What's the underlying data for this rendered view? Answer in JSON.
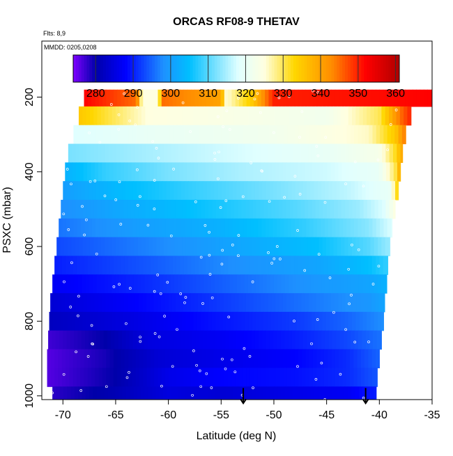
{
  "chart_data": {
    "type": "heatmap",
    "title": "ORCAS RF08-9 THETAV",
    "annotations": {
      "flights": "Flts: 8,9",
      "dates": "MMDD: 0205,0208"
    },
    "xlabel": "Latitude (deg N)",
    "ylabel": "PSXC (mbar)",
    "xlim": [
      -72,
      -35
    ],
    "ylim": [
      1010,
      50
    ],
    "y_reversed": true,
    "x_ticks": [
      -70,
      -65,
      -60,
      -55,
      -50,
      -45,
      -40,
      -35
    ],
    "x_tick_labels": [
      "-70",
      "-65",
      "-60",
      "-55",
      "-50",
      "-45",
      "-40",
      "-35"
    ],
    "y_ticks": [
      200,
      400,
      600,
      800,
      1000
    ],
    "y_tick_labels": [
      "200",
      "400",
      "600",
      "800",
      "1000"
    ],
    "colorbar": {
      "min": 274,
      "max": 361,
      "ticks": [
        280,
        290,
        300,
        310,
        320,
        330,
        340,
        350,
        360
      ],
      "tick_labels": [
        "280",
        "290",
        "300",
        "310",
        "320",
        "330",
        "340",
        "350",
        "360"
      ],
      "colors": [
        "#7f00ff",
        "#0000aa",
        "#0000ff",
        "#1e90ff",
        "#00bfff",
        "#e0ffff",
        "#ffffe0",
        "#ffd700",
        "#ff8c00",
        "#ff0000",
        "#b00000"
      ],
      "color_stops": [
        274,
        280,
        288,
        298,
        305,
        318,
        325,
        333,
        343,
        352,
        361
      ]
    },
    "layers": [
      {
        "p_top": 180,
        "p_bot": 225,
        "lat_min": -68,
        "lat_max": -35,
        "values": [
          [
            -68,
            352
          ],
          [
            -63,
            345
          ],
          [
            -62.5,
            325
          ],
          [
            -61,
            325
          ],
          [
            -60.5,
            345
          ],
          [
            -55,
            340
          ],
          [
            -54.5,
            325
          ],
          [
            -52,
            335
          ],
          [
            -50,
            350
          ],
          [
            -35,
            352
          ]
        ]
      },
      {
        "p_top": 225,
        "p_bot": 275,
        "lat_min": -68.5,
        "lat_max": -37,
        "values": [
          [
            -68.5,
            335
          ],
          [
            -62,
            325
          ],
          [
            -45,
            322
          ],
          [
            -40,
            330
          ],
          [
            -38,
            345
          ],
          [
            -37,
            350
          ]
        ]
      },
      {
        "p_top": 275,
        "p_bot": 325,
        "lat_min": -69,
        "lat_max": -37.5,
        "values": [
          [
            -69,
            318
          ],
          [
            -62,
            320
          ],
          [
            -50,
            322
          ],
          [
            -41,
            326
          ],
          [
            -38.5,
            335
          ],
          [
            -37.5,
            345
          ]
        ]
      },
      {
        "p_top": 325,
        "p_bot": 375,
        "lat_min": -69.5,
        "lat_max": -37.8,
        "values": [
          [
            -69.5,
            312
          ],
          [
            -64,
            314
          ],
          [
            -55,
            317
          ],
          [
            -45,
            320
          ],
          [
            -40,
            323
          ],
          [
            -38.5,
            332
          ],
          [
            -37.8,
            340
          ]
        ]
      },
      {
        "p_top": 375,
        "p_bot": 425,
        "lat_min": -69.8,
        "lat_max": -38,
        "values": [
          [
            -69.8,
            303
          ],
          [
            -66,
            308
          ],
          [
            -60,
            312
          ],
          [
            -53,
            315
          ],
          [
            -45,
            317
          ],
          [
            -40,
            320
          ],
          [
            -38.5,
            330
          ],
          [
            -38,
            340
          ]
        ]
      },
      {
        "p_top": 425,
        "p_bot": 475,
        "lat_min": -70,
        "lat_max": -38.2,
        "values": [
          [
            -70,
            300
          ],
          [
            -65,
            304
          ],
          [
            -58,
            308
          ],
          [
            -50,
            312
          ],
          [
            -43,
            316
          ],
          [
            -39,
            320
          ],
          [
            -38.2,
            335
          ]
        ]
      },
      {
        "p_top": 475,
        "p_bot": 525,
        "lat_min": -70.2,
        "lat_max": -38.5,
        "values": [
          [
            -70.2,
            298
          ],
          [
            -64,
            302
          ],
          [
            -56,
            306
          ],
          [
            -48,
            310
          ],
          [
            -42,
            314
          ],
          [
            -39.5,
            318
          ],
          [
            -38.5,
            325
          ]
        ]
      },
      {
        "p_top": 525,
        "p_bot": 575,
        "lat_min": -70.4,
        "lat_max": -38.8,
        "values": [
          [
            -70.4,
            296
          ],
          [
            -63,
            300
          ],
          [
            -55,
            303
          ],
          [
            -47,
            308
          ],
          [
            -41,
            313
          ],
          [
            -38.8,
            318
          ]
        ]
      },
      {
        "p_top": 575,
        "p_bot": 625,
        "lat_min": -70.6,
        "lat_max": -39,
        "values": [
          [
            -70.6,
            293
          ],
          [
            -62,
            297
          ],
          [
            -54,
            301
          ],
          [
            -46,
            305
          ],
          [
            -41,
            310
          ],
          [
            -39,
            314
          ]
        ]
      },
      {
        "p_top": 625,
        "p_bot": 675,
        "lat_min": -70.8,
        "lat_max": -39.2,
        "values": [
          [
            -70.8,
            290
          ],
          [
            -62,
            294
          ],
          [
            -54,
            298
          ],
          [
            -46,
            301
          ],
          [
            -41,
            305
          ],
          [
            -39.2,
            308
          ]
        ]
      },
      {
        "p_top": 675,
        "p_bot": 725,
        "lat_min": -71,
        "lat_max": -39.3,
        "values": [
          [
            -71,
            287
          ],
          [
            -62,
            291
          ],
          [
            -54,
            295
          ],
          [
            -46,
            299
          ],
          [
            -41,
            301
          ],
          [
            -39.3,
            303
          ]
        ]
      },
      {
        "p_top": 725,
        "p_bot": 775,
        "lat_min": -71.2,
        "lat_max": -39.5,
        "values": [
          [
            -71.2,
            284
          ],
          [
            -63,
            288
          ],
          [
            -55,
            292
          ],
          [
            -47,
            296
          ],
          [
            -41,
            299
          ],
          [
            -39.5,
            301
          ]
        ]
      },
      {
        "p_top": 775,
        "p_bot": 825,
        "lat_min": -71.3,
        "lat_max": -39.6,
        "values": [
          [
            -71.3,
            282
          ],
          [
            -64,
            285
          ],
          [
            -56,
            289
          ],
          [
            -48,
            292
          ],
          [
            -43,
            295
          ],
          [
            -39.6,
            298
          ]
        ]
      },
      {
        "p_top": 825,
        "p_bot": 875,
        "lat_min": -71.4,
        "lat_max": -39.8,
        "values": [
          [
            -71.4,
            277
          ],
          [
            -66,
            280
          ],
          [
            -62,
            285
          ],
          [
            -55,
            287
          ],
          [
            -48,
            290
          ],
          [
            -43,
            293
          ],
          [
            -39.8,
            296
          ]
        ]
      },
      {
        "p_top": 875,
        "p_bot": 925,
        "lat_min": -71.5,
        "lat_max": -40,
        "values": [
          [
            -71.5,
            276
          ],
          [
            -66,
            279
          ],
          [
            -61,
            284
          ],
          [
            -55,
            286
          ],
          [
            -48,
            288
          ],
          [
            -43,
            291
          ],
          [
            -40,
            295
          ]
        ]
      },
      {
        "p_top": 925,
        "p_bot": 975,
        "lat_min": -71.5,
        "lat_max": -40.2,
        "values": [
          [
            -71.5,
            276
          ],
          [
            -65,
            280
          ],
          [
            -60,
            286
          ],
          [
            -55,
            288
          ],
          [
            -48,
            289
          ],
          [
            -43,
            291
          ],
          [
            -40.2,
            294
          ]
        ]
      },
      {
        "p_top": 975,
        "p_bot": 1010,
        "lat_min": -71,
        "lat_max": -40.3,
        "values": [
          [
            -71,
            278
          ],
          [
            -65,
            281
          ],
          [
            -60,
            285
          ],
          [
            -55,
            284
          ],
          [
            -48,
            286
          ],
          [
            -43,
            287
          ],
          [
            -40.3,
            290
          ]
        ]
      }
    ],
    "markers": [
      {
        "x": -52.9,
        "y": 1005,
        "symbol": "down-arrow"
      },
      {
        "x": -41.3,
        "y": 1005,
        "symbol": "down-arrow"
      }
    ]
  }
}
